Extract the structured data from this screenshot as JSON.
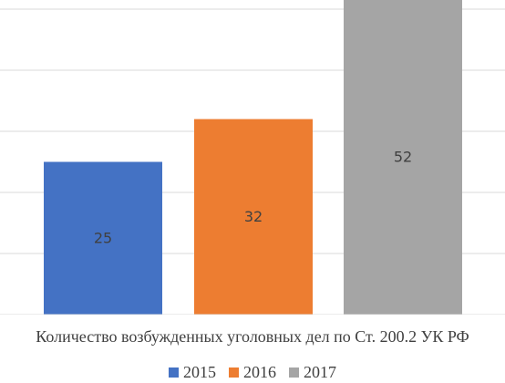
{
  "chart_data": {
    "type": "bar",
    "categories": [
      "2015",
      "2016",
      "2017"
    ],
    "values": [
      25,
      32,
      52
    ],
    "data_labels": [
      "25",
      "32",
      "52"
    ],
    "title": "",
    "xlabel": "Количество возбужденных уголовных дел по Ст. 200.2 УК РФ",
    "ylabel": "",
    "ylim": [
      0,
      50
    ],
    "grid": true,
    "legend_position": "bottom",
    "colors": [
      "#4472c4",
      "#ed7d31",
      "#a5a5a5"
    ]
  },
  "legend": {
    "items": [
      {
        "label": "2015",
        "color": "#4472c4"
      },
      {
        "label": "2016",
        "color": "#ed7d31"
      },
      {
        "label": "2017",
        "color": "#a5a5a5"
      }
    ]
  }
}
